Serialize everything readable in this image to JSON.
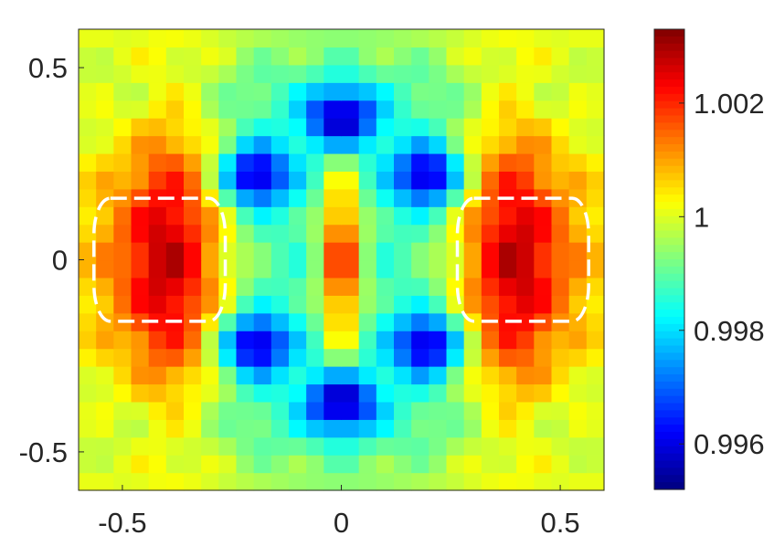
{
  "chart_data": {
    "type": "heatmap",
    "title": "",
    "xlabel": "",
    "ylabel": "",
    "xlim": [
      -0.6,
      0.6
    ],
    "ylim": [
      -0.6,
      0.6
    ],
    "x_ticks": [
      {
        "value": -0.5,
        "label": "-0.5"
      },
      {
        "value": 0,
        "label": "0"
      },
      {
        "value": 0.5,
        "label": "0.5"
      }
    ],
    "y_ticks": [
      {
        "value": 0.5,
        "label": "0.5"
      },
      {
        "value": 0,
        "label": "0"
      },
      {
        "value": -0.5,
        "label": "-0.5"
      }
    ],
    "grid": false,
    "colormap": "jet",
    "color_range": [
      0.9952,
      1.0033
    ],
    "colorbar": {
      "placement": "right",
      "ticks": [
        {
          "value": 1.002,
          "label": "1.002"
        },
        {
          "value": 1.0,
          "label": "1"
        },
        {
          "value": 0.998,
          "label": "0.998"
        },
        {
          "value": 0.996,
          "label": "0.996"
        }
      ]
    },
    "resolution": [
      30,
      26
    ],
    "features": [
      {
        "name": "lobe",
        "cx": -0.4,
        "cy": 0.0,
        "sx": 0.1,
        "sy": 0.3,
        "amp": 1.0028
      },
      {
        "name": "lobe",
        "cx": 0.4,
        "cy": 0.0,
        "sx": 0.1,
        "sy": 0.3,
        "amp": 1.0028
      },
      {
        "name": "center-bar",
        "cx": 0.0,
        "cy": 0.0,
        "sx": 0.035,
        "sy": 0.17,
        "amp": 1.002
      },
      {
        "name": "dip",
        "cx": -0.2,
        "cy": 0.22,
        "amp": 0.9952
      },
      {
        "name": "dip",
        "cx": 0.2,
        "cy": 0.22,
        "amp": 0.9952
      },
      {
        "name": "dip",
        "cx": -0.2,
        "cy": -0.22,
        "amp": 0.9952
      },
      {
        "name": "dip",
        "cx": 0.2,
        "cy": -0.22,
        "amp": 0.9952
      },
      {
        "name": "dip",
        "cx": 0.0,
        "cy": 0.37,
        "amp": 0.9952
      },
      {
        "name": "dip",
        "cx": 0.0,
        "cy": -0.37,
        "amp": 0.9952
      }
    ],
    "dashed_boxes": [
      {
        "x0": -0.565,
        "x1": -0.265,
        "y0": -0.16,
        "y1": 0.16,
        "color": "#ffffff"
      },
      {
        "x0": 0.265,
        "x1": 0.565,
        "y0": -0.16,
        "y1": 0.16,
        "color": "#ffffff"
      }
    ]
  }
}
